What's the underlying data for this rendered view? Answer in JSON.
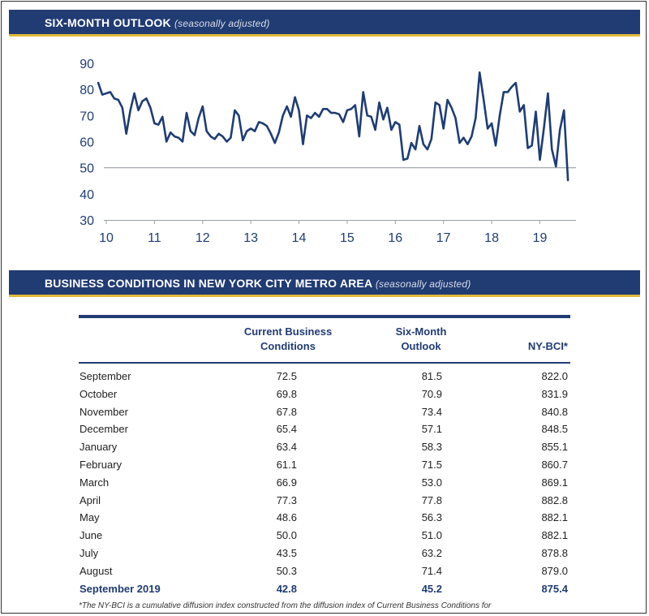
{
  "banner1": {
    "title": "SIX-MONTH OUTLOOK",
    "subtitle": "(seasonally adjusted)"
  },
  "banner2": {
    "title": "BUSINESS CONDITIONS IN NEW YORK CITY METRO AREA",
    "subtitle": "(seasonally adjusted)"
  },
  "chart_data": {
    "type": "line",
    "title": "SIX-MONTH OUTLOOK",
    "subtitle": "(seasonally adjusted)",
    "xlabel": "",
    "ylabel": "",
    "xlim": [
      2010,
      2019.75
    ],
    "ylim": [
      30,
      90
    ],
    "yticks": [
      30,
      40,
      50,
      60,
      70,
      80,
      90
    ],
    "xticks": [
      {
        "value": 2010,
        "label": "10"
      },
      {
        "value": 2011,
        "label": "11"
      },
      {
        "value": 2012,
        "label": "12"
      },
      {
        "value": 2013,
        "label": "13"
      },
      {
        "value": 2014,
        "label": "14"
      },
      {
        "value": 2015,
        "label": "15"
      },
      {
        "value": 2016,
        "label": "16"
      },
      {
        "value": 2017,
        "label": "17"
      },
      {
        "value": 2018,
        "label": "18"
      },
      {
        "value": 2019,
        "label": "19"
      }
    ],
    "reference_line": 50,
    "grid": false,
    "series": [
      {
        "color": "#1f3d72",
        "x_start": "2009-11",
        "frequency": "monthly",
        "values": [
          82.5,
          78,
          78.5,
          79,
          76.5,
          76,
          73,
          63,
          72,
          78.5,
          72,
          75.5,
          76.5,
          73,
          67,
          66.5,
          69.5,
          60,
          63.5,
          62,
          61.5,
          60,
          71,
          64,
          62.5,
          69,
          73.5,
          64,
          62,
          61,
          63,
          62,
          60,
          61.5,
          72,
          70,
          60.5,
          64,
          65,
          64,
          67.5,
          67,
          66,
          63,
          59.5,
          63.5,
          70,
          73.5,
          69.5,
          77,
          72,
          59,
          70,
          69,
          71,
          69.5,
          72.5,
          72.5,
          71,
          71,
          70.5,
          67.5,
          72,
          72.5,
          74,
          62,
          79,
          70,
          69.5,
          64.5,
          75,
          68.5,
          73,
          64.5,
          67.5,
          66.5,
          53,
          53.5,
          59.5,
          57,
          66,
          59,
          57,
          61,
          75,
          74,
          65,
          76,
          73,
          69,
          59.5,
          61.5,
          59,
          62,
          69,
          86.5,
          76,
          65,
          67,
          58.5,
          70,
          79,
          79,
          81,
          82.5,
          71.5,
          74,
          57.5,
          58.5,
          71.5,
          53,
          65,
          78.5,
          57,
          50.5,
          64.5,
          72,
          45.2
        ]
      }
    ]
  },
  "table": {
    "headers": [
      {
        "line1": "Current Business",
        "line2": "Conditions"
      },
      {
        "line1": "Six-Month",
        "line2": "Outlook"
      },
      {
        "line1": "",
        "line2": "NY-BCI*"
      }
    ],
    "rows": [
      {
        "month": "September",
        "current": "72.5",
        "outlook": "81.5",
        "bci": "822.0"
      },
      {
        "month": "October",
        "current": "69.8",
        "outlook": "70.9",
        "bci": "831.9"
      },
      {
        "month": "November",
        "current": "67.8",
        "outlook": "73.4",
        "bci": "840.8"
      },
      {
        "month": "December",
        "current": "65.4",
        "outlook": "57.1",
        "bci": "848.5"
      },
      {
        "month": "January",
        "current": "63.4",
        "outlook": "58.3",
        "bci": "855.1"
      },
      {
        "month": "February",
        "current": "61.1",
        "outlook": "71.5",
        "bci": "860.7"
      },
      {
        "month": "March",
        "current": "66.9",
        "outlook": "53.0",
        "bci": "869.1"
      },
      {
        "month": "April",
        "current": "77.3",
        "outlook": "77.8",
        "bci": "882.8"
      },
      {
        "month": "May",
        "current": "48.6",
        "outlook": "56.3",
        "bci": "882.1"
      },
      {
        "month": "June",
        "current": "50.0",
        "outlook": "51.0",
        "bci": "882.1"
      },
      {
        "month": "July",
        "current": "43.5",
        "outlook": "63.2",
        "bci": "878.8"
      },
      {
        "month": "August",
        "current": "50.3",
        "outlook": "71.4",
        "bci": "879.0"
      },
      {
        "month": "September 2019",
        "current": "42.8",
        "outlook": "45.2",
        "bci": "875.4"
      }
    ]
  },
  "footnote": "*The NY-BCI is a cumulative diffusion index constructed from the diffusion index of Current Business Conditions for",
  "colors": {
    "banner": "#213b73",
    "accent": "#e2b93b",
    "line": "#1f3d72"
  }
}
